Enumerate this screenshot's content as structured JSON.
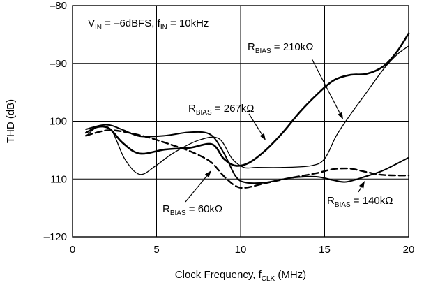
{
  "chart_data": {
    "type": "line",
    "xlabel": {
      "main": "Clock Frequency, f",
      "sub": "CLK",
      "tail": " (MHz)"
    },
    "ylabel": "THD (dB)",
    "xlim": [
      0,
      20
    ],
    "ylim": [
      -120,
      -80
    ],
    "x_ticks": [
      0,
      5,
      10,
      15,
      20
    ],
    "y_ticks": [
      -80,
      -90,
      -100,
      -110,
      -120
    ],
    "grid": true,
    "condition": [
      {
        "t": "V"
      },
      {
        "t": "IN",
        "sub": true
      },
      {
        "t": " = –6dBFS, f"
      },
      {
        "t": "IN",
        "sub": true
      },
      {
        "t": " = 10kHz"
      }
    ],
    "series": [
      {
        "label": [
          {
            "t": "R"
          },
          {
            "t": "BIAS",
            "sub": true
          },
          {
            "t": " = 210kΩ"
          }
        ],
        "style": "thin",
        "points": [
          [
            0.8,
            -102.6
          ],
          [
            1.5,
            -101.0
          ],
          [
            2.3,
            -101.5
          ],
          [
            3.1,
            -106.5
          ],
          [
            4.0,
            -109.2
          ],
          [
            5.0,
            -107.6
          ],
          [
            6.0,
            -105.5
          ],
          [
            7.5,
            -103.3
          ],
          [
            8.7,
            -103.0
          ],
          [
            9.5,
            -106.5
          ],
          [
            10.2,
            -108.0
          ],
          [
            11.0,
            -108.0
          ],
          [
            12.5,
            -108.0
          ],
          [
            14.2,
            -107.7
          ],
          [
            15.0,
            -106.5
          ],
          [
            15.7,
            -102.5
          ],
          [
            16.5,
            -99.0
          ],
          [
            17.5,
            -95.0
          ],
          [
            18.5,
            -91.0
          ],
          [
            19.3,
            -88.5
          ],
          [
            20.0,
            -87.0
          ]
        ]
      },
      {
        "label": [
          {
            "t": "R"
          },
          {
            "t": "BIAS",
            "sub": true
          },
          {
            "t": " = 267kΩ"
          }
        ],
        "style": "thick",
        "points": [
          [
            0.8,
            -102.0
          ],
          [
            1.5,
            -101.0
          ],
          [
            2.2,
            -101.3
          ],
          [
            3.0,
            -103.8
          ],
          [
            4.0,
            -105.6
          ],
          [
            5.5,
            -104.9
          ],
          [
            7.0,
            -104.6
          ],
          [
            8.3,
            -104.0
          ],
          [
            9.0,
            -106.5
          ],
          [
            9.7,
            -107.7
          ],
          [
            10.5,
            -107.2
          ],
          [
            11.5,
            -105.0
          ],
          [
            12.5,
            -102.0
          ],
          [
            13.5,
            -98.5
          ],
          [
            14.5,
            -95.5
          ],
          [
            15.5,
            -93.0
          ],
          [
            16.5,
            -92.0
          ],
          [
            17.5,
            -91.8
          ],
          [
            18.5,
            -90.5
          ],
          [
            19.3,
            -88.0
          ],
          [
            20.0,
            -84.8
          ]
        ]
      },
      {
        "label": [
          {
            "t": "R"
          },
          {
            "t": "BIAS",
            "sub": true
          },
          {
            "t": " = 60kΩ"
          }
        ],
        "style": "dashed",
        "points": [
          [
            0.8,
            -102.5
          ],
          [
            2.0,
            -101.6
          ],
          [
            3.0,
            -101.8
          ],
          [
            4.5,
            -102.8
          ],
          [
            6.0,
            -104.2
          ],
          [
            7.0,
            -105.2
          ],
          [
            8.2,
            -107.0
          ],
          [
            9.0,
            -109.5
          ],
          [
            9.7,
            -111.2
          ],
          [
            10.3,
            -111.5
          ],
          [
            11.5,
            -110.7
          ],
          [
            13.0,
            -109.8
          ],
          [
            14.5,
            -109.0
          ],
          [
            15.5,
            -108.3
          ],
          [
            16.5,
            -108.2
          ],
          [
            17.5,
            -108.8
          ],
          [
            18.5,
            -109.3
          ],
          [
            20.0,
            -109.4
          ]
        ]
      },
      {
        "label": [
          {
            "t": "R"
          },
          {
            "t": "BIAS",
            "sub": true
          },
          {
            "t": " = 140kΩ"
          }
        ],
        "style": "medium",
        "points": [
          [
            0.8,
            -101.4
          ],
          [
            2.0,
            -100.6
          ],
          [
            3.0,
            -101.5
          ],
          [
            4.0,
            -102.6
          ],
          [
            5.5,
            -102.5
          ],
          [
            7.0,
            -101.9
          ],
          [
            8.2,
            -102.3
          ],
          [
            9.0,
            -105.5
          ],
          [
            9.7,
            -109.5
          ],
          [
            10.3,
            -110.6
          ],
          [
            11.5,
            -110.6
          ],
          [
            13.0,
            -109.8
          ],
          [
            14.5,
            -109.6
          ],
          [
            15.5,
            -110.2
          ],
          [
            16.3,
            -110.5
          ],
          [
            17.5,
            -109.5
          ],
          [
            18.5,
            -108.5
          ],
          [
            20.0,
            -106.3
          ]
        ]
      }
    ]
  }
}
